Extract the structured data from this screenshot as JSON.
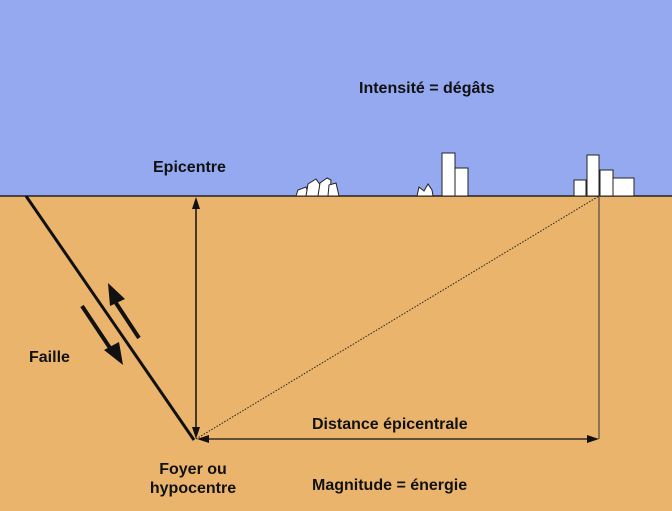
{
  "colors": {
    "sky": "#94a9f0",
    "ground": "#eab46c",
    "line": "#111111",
    "building_fill": "#ffffff"
  },
  "labels": {
    "intensity": "Intensité = dégâts",
    "epicenter": "Epicentre",
    "fault": "Faille",
    "distance": "Distance épicentrale",
    "focus_line1": "Foyer ou",
    "focus_line2": "hypocentre",
    "magnitude": "Magnitude = énergie"
  },
  "icons": {
    "collapsed_buildings": "collapsed-buildings-icon",
    "damaged_buildings": "damaged-buildings-icon",
    "intact_buildings": "intact-buildings-icon",
    "slip_up": "arrow-up-icon",
    "slip_down": "arrow-down-icon"
  }
}
